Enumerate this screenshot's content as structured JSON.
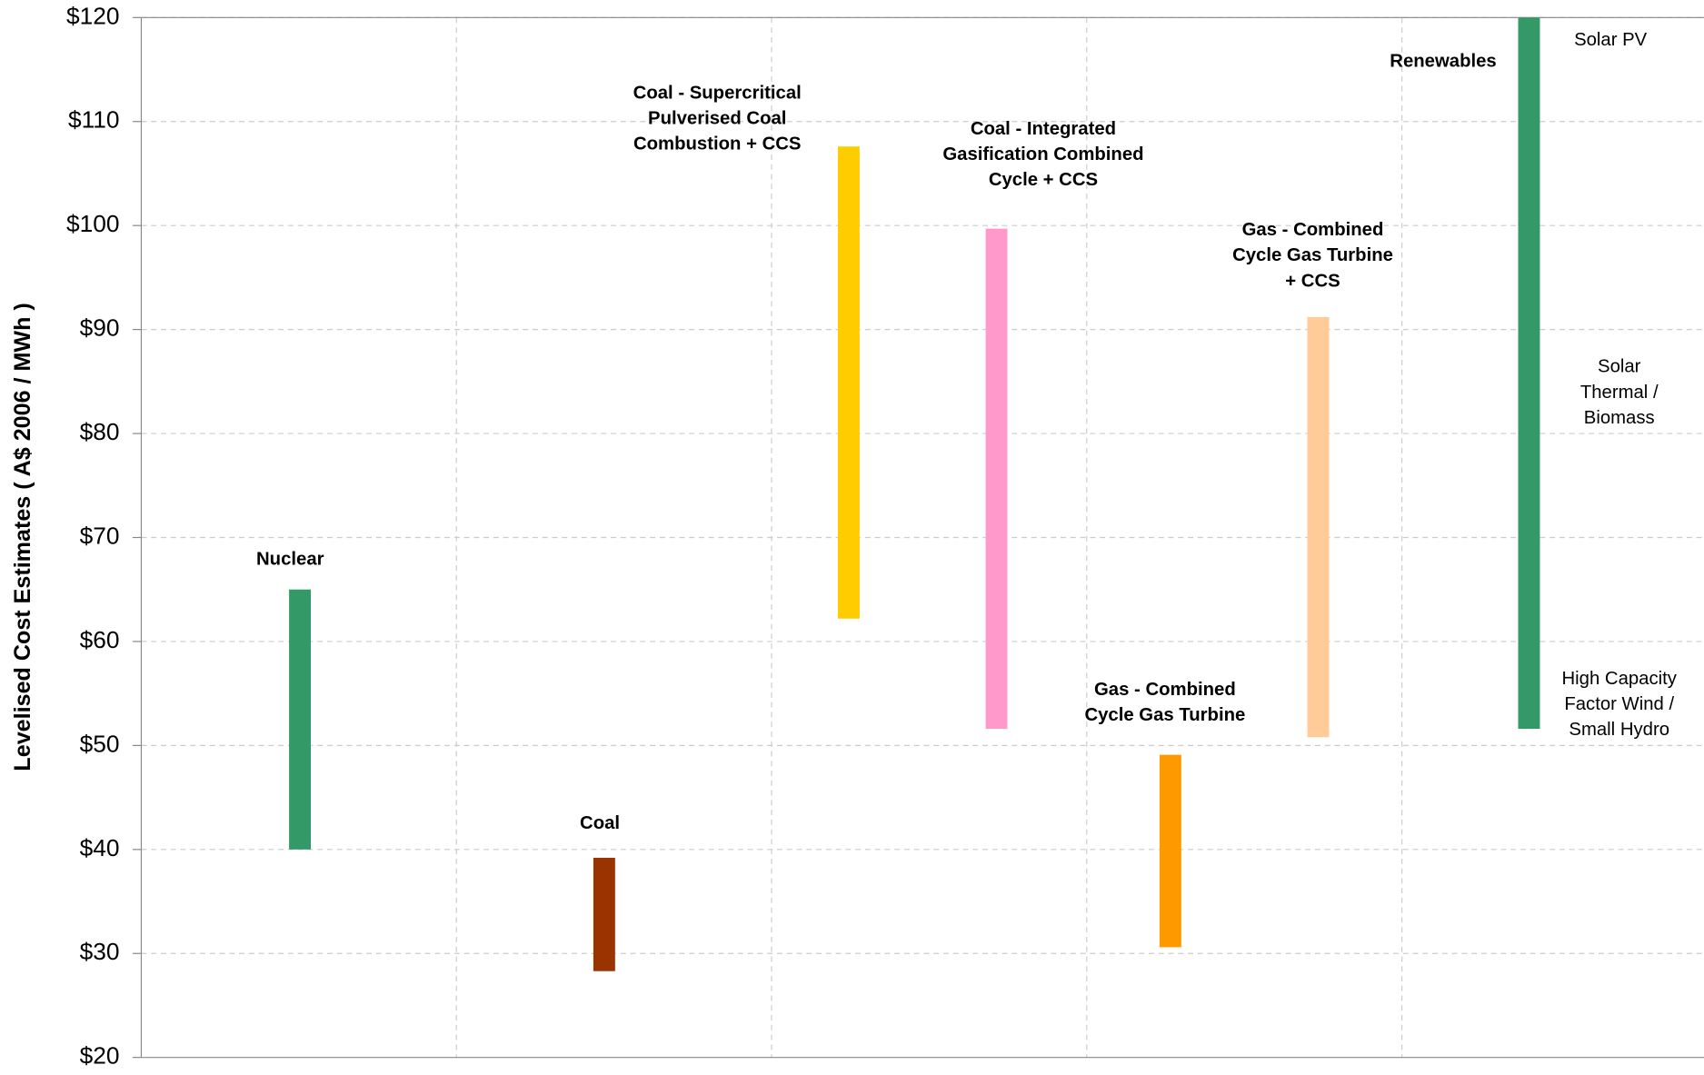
{
  "chart_data": {
    "type": "range-bar",
    "y_label": "Levelised Cost Estimates ( A$ 2006 / MWh )",
    "categories": [
      [
        "Nuclear"
      ],
      [
        "Coal"
      ],
      [
        "Coal - Supercritical",
        "Pulverised Coal",
        "Combustion + CCS"
      ],
      [
        "Coal - Integrated",
        "Gasification Combined",
        "Cycle + CCS"
      ],
      [
        "Gas - Combined",
        "Cycle Gas Turbine"
      ],
      [
        "Gas - Combined",
        "Cycle Gas Turbine",
        "+ CCS"
      ],
      [
        "Renewables"
      ]
    ],
    "low": [
      40,
      28.3,
      62.2,
      51.6,
      30.6,
      50.8,
      51.6
    ],
    "high": [
      65,
      39.2,
      107.6,
      99.7,
      49.1,
      91.2,
      120
    ],
    "colors": [
      "#339966",
      "#993300",
      "#ffcc00",
      "#ff99cc",
      "#ff9900",
      "#ffcc99",
      "#339966"
    ],
    "annotations": [
      [
        "Solar PV"
      ],
      [
        "Solar",
        "Thermal /",
        "Biomass"
      ],
      [
        "High Capacity",
        "Factor Wind /",
        "Small Hydro"
      ]
    ],
    "ylim": [
      20,
      120
    ],
    "yticks": [
      {
        "value": 20,
        "label": "$20"
      },
      {
        "value": 30,
        "label": "$30"
      },
      {
        "value": 40,
        "label": "$40"
      },
      {
        "value": 50,
        "label": "$50"
      },
      {
        "value": 60,
        "label": "$60"
      },
      {
        "value": 70,
        "label": "$70"
      },
      {
        "value": 80,
        "label": "$80"
      },
      {
        "value": 90,
        "label": "$90"
      },
      {
        "value": 100,
        "label": "$100"
      },
      {
        "value": 110,
        "label": "$110"
      },
      {
        "value": 120,
        "label": "$120"
      }
    ],
    "grid": true
  }
}
